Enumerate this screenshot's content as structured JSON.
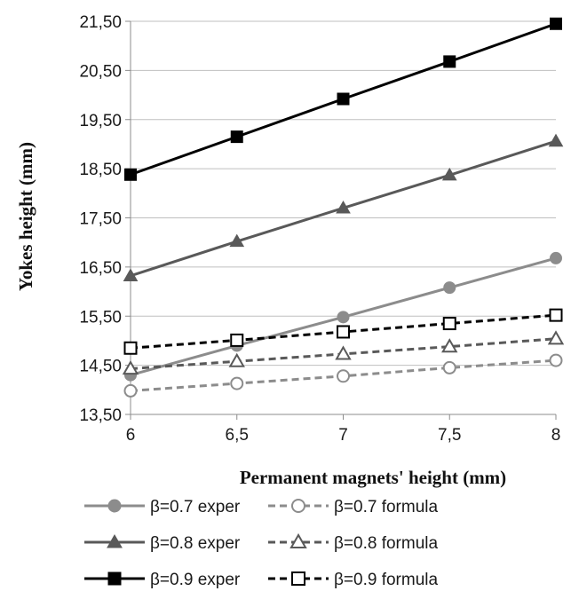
{
  "chart_data": {
    "type": "line",
    "xlabel": "Permanent magnets' height (mm)",
    "ylabel": "Yokes height (mm)",
    "x": [
      6,
      6.5,
      7,
      7.5,
      8
    ],
    "x_tick_labels": [
      "6",
      "6,5",
      "7",
      "7,5",
      "8"
    ],
    "ylim": [
      13.5,
      21.5
    ],
    "y_ticks": [
      13.5,
      14.5,
      15.5,
      16.5,
      17.5,
      18.5,
      19.5,
      20.5,
      21.5
    ],
    "y_tick_labels": [
      "13,50",
      "14,50",
      "15,50",
      "16,50",
      "17,50",
      "18,50",
      "19,50",
      "20,50",
      "21,50"
    ],
    "grid": "horizontal",
    "legend_position": "bottom",
    "series": [
      {
        "name": "β=0.7 exper",
        "values": [
          14.3,
          14.9,
          15.48,
          16.08,
          16.68
        ],
        "color": "#8c8c8c",
        "dash": "solid",
        "marker": "circle",
        "filled": true
      },
      {
        "name": "β=0.7 formula",
        "values": [
          13.98,
          14.13,
          14.28,
          14.45,
          14.6
        ],
        "color": "#8c8c8c",
        "dash": "dashed",
        "marker": "circle",
        "filled": false
      },
      {
        "name": "β=0.8 exper",
        "values": [
          16.32,
          17.02,
          17.7,
          18.37,
          19.06
        ],
        "color": "#595959",
        "dash": "solid",
        "marker": "triangle",
        "filled": true
      },
      {
        "name": "β=0.8 formula",
        "values": [
          14.43,
          14.58,
          14.73,
          14.88,
          15.04
        ],
        "color": "#595959",
        "dash": "dashed",
        "marker": "triangle",
        "filled": false
      },
      {
        "name": "β=0.9 exper",
        "values": [
          18.38,
          19.15,
          19.92,
          20.68,
          21.45
        ],
        "color": "#000000",
        "dash": "solid",
        "marker": "square",
        "filled": true
      },
      {
        "name": "β=0.9 formula",
        "values": [
          14.85,
          15.01,
          15.18,
          15.35,
          15.52
        ],
        "color": "#000000",
        "dash": "dashed",
        "marker": "square",
        "filled": false
      }
    ]
  }
}
